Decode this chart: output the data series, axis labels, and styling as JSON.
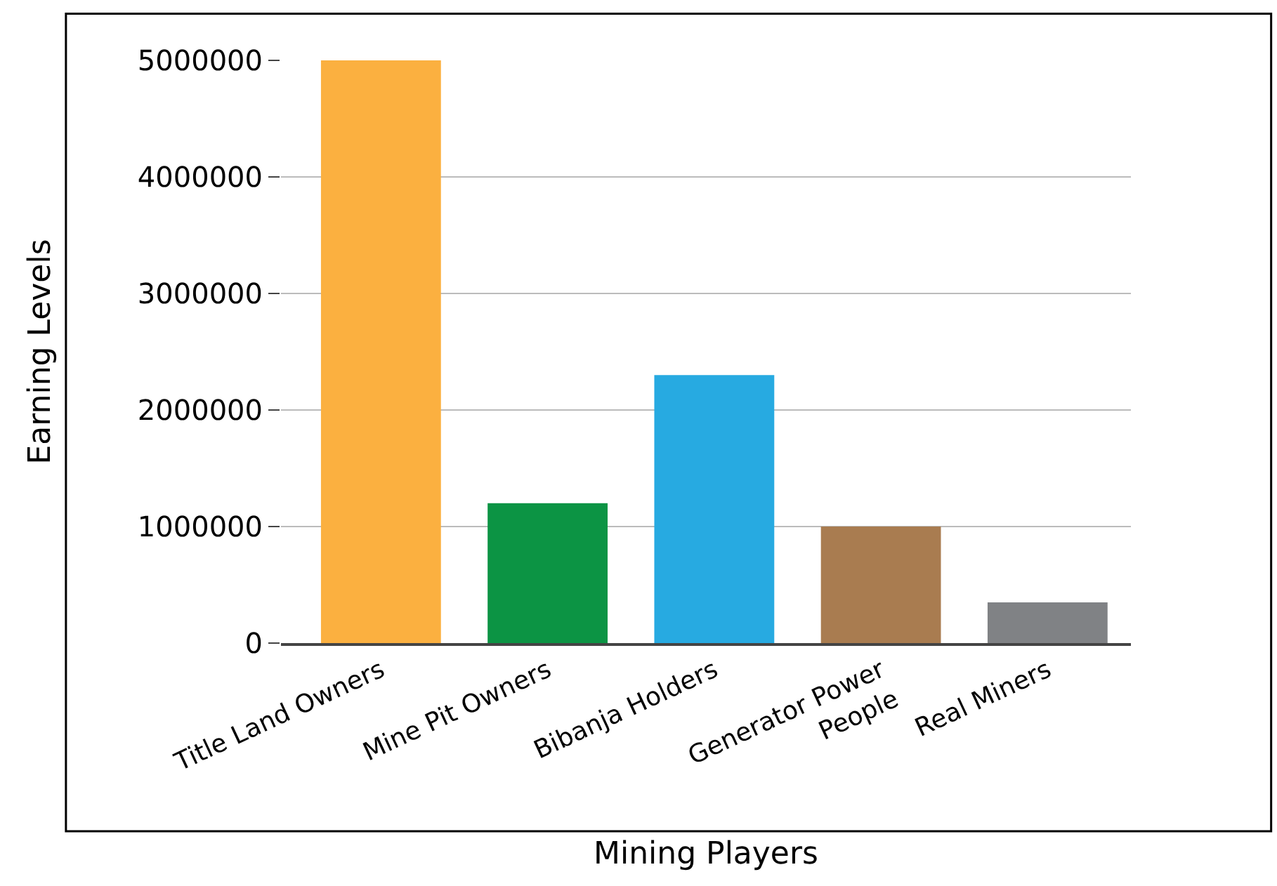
{
  "chart_data": {
    "type": "bar",
    "xlabel": "Mining Players",
    "ylabel": "Earning Levels",
    "categories": [
      "Title Land Owners",
      "Mine Pit Owners",
      "Bibanja Holders",
      "Generator Power People",
      "Real Miners"
    ],
    "values": [
      5000000,
      1200000,
      2300000,
      1000000,
      350000
    ],
    "colors": [
      "#fbb040",
      "#0c9444",
      "#27aae1",
      "#a97c50",
      "#808285"
    ],
    "ylim": [
      0,
      5000000
    ],
    "yticks": [
      0,
      1000000,
      2000000,
      3000000,
      4000000,
      5000000
    ],
    "grid": "y"
  }
}
